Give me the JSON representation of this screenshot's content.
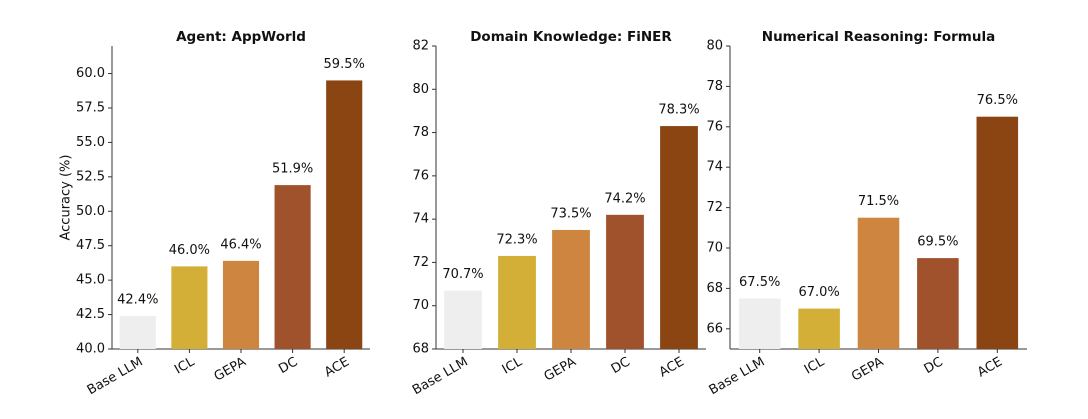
{
  "chart_data": [
    {
      "type": "bar",
      "title": "Agent: AppWorld",
      "y_label": "Accuracy (%)",
      "categories": [
        "Base LLM",
        "ICL",
        "GEPA",
        "DC",
        "ACE"
      ],
      "values": [
        42.4,
        46.0,
        46.4,
        51.9,
        59.5
      ],
      "value_labels": [
        "42.4%",
        "46.0%",
        "46.4%",
        "51.9%",
        "59.5%"
      ],
      "colors": [
        "#eeeeee",
        "#d4af37",
        "#cd853f",
        "#a0522d",
        "#8b4513"
      ],
      "ylim": [
        40,
        62.0
      ],
      "yticks": [
        {
          "value": 40,
          "label": "40.0"
        },
        {
          "value": 42.5,
          "label": "42.5"
        },
        {
          "value": 45,
          "label": "45.0"
        },
        {
          "value": 47.5,
          "label": "47.5"
        },
        {
          "value": 50,
          "label": "50.0"
        },
        {
          "value": 52.5,
          "label": "52.5"
        },
        {
          "value": 55,
          "label": "55.0"
        },
        {
          "value": 57.5,
          "label": "57.5"
        },
        {
          "value": 60,
          "label": "60.0"
        }
      ]
    },
    {
      "type": "bar",
      "title": "Domain Knowledge: FiNER",
      "categories": [
        "Base LLM",
        "ICL",
        "GEPA",
        "DC",
        "ACE"
      ],
      "values": [
        70.7,
        72.3,
        73.5,
        74.2,
        78.3
      ],
      "value_labels": [
        "70.7%",
        "72.3%",
        "73.5%",
        "74.2%",
        "78.3%"
      ],
      "colors": [
        "#eeeeee",
        "#d4af37",
        "#cd853f",
        "#a0522d",
        "#8b4513"
      ],
      "ylim": [
        68,
        82
      ],
      "yticks": [
        68,
        70,
        72,
        74,
        76,
        78,
        80,
        82
      ]
    },
    {
      "type": "bar",
      "title": "Numerical Reasoning: Formula",
      "categories": [
        "Base LLM",
        "ICL",
        "GEPA",
        "DC",
        "ACE"
      ],
      "values": [
        67.5,
        67.0,
        71.5,
        69.5,
        76.5
      ],
      "value_labels": [
        "67.5%",
        "67.0%",
        "71.5%",
        "69.5%",
        "76.5%"
      ],
      "colors": [
        "#eeeeee",
        "#d4af37",
        "#cd853f",
        "#a0522d",
        "#8b4513"
      ],
      "ylim": [
        65,
        80
      ],
      "yticks": [
        66,
        68,
        70,
        72,
        74,
        76,
        78,
        80
      ]
    }
  ]
}
